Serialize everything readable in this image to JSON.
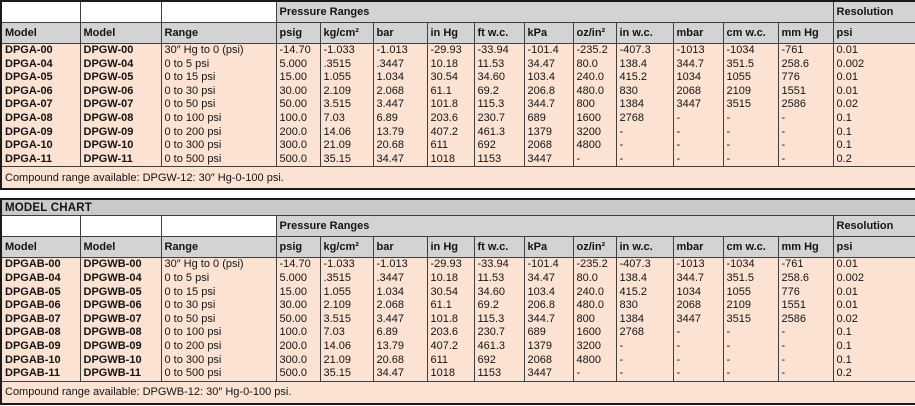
{
  "colors": {
    "header_bg": "#d3d3d3",
    "chart_title_bg": "#c9c9c9",
    "row_bg": "#fbe2d3",
    "inner_border": "#3f3f3f",
    "outer_border": "#1a1a1a",
    "text": "#141414"
  },
  "tables": [
    {
      "group_header": {
        "pressure_ranges": "Pressure Ranges",
        "resolution": "Resolution"
      },
      "columns": [
        "Model",
        "Model",
        "Range",
        "psig",
        "kg/cm²",
        "bar",
        "in Hg",
        "ft w.c.",
        "kPa",
        "oz/in²",
        "in w.c.",
        "mbar",
        "cm w.c.",
        "mm Hg",
        "psi"
      ],
      "rows": [
        [
          "DPGA-00",
          "DPGW-00",
          "30″ Hg to 0 (psi)",
          "-14.70",
          "-1.033",
          "-1.013",
          "-29.93",
          "-33.94",
          "-101.4",
          "-235.2",
          "-407.3",
          "-1013",
          "-1034",
          "-761",
          "0.01"
        ],
        [
          "DPGA-04",
          "DPGW-04",
          "0 to 5 psi",
          "5.000",
          ".3515",
          ".3447",
          "10.18",
          "11.53",
          "34.47",
          "80.0",
          "138.4",
          "344.7",
          "351.5",
          "258.6",
          "0.002"
        ],
        [
          "DPGA-05",
          "DPGW-05",
          "0 to 15 psi",
          "15.00",
          "1.055",
          "1.034",
          "30.54",
          "34.60",
          "103.4",
          "240.0",
          "415.2",
          "1034",
          "1055",
          "776",
          "0.01"
        ],
        [
          "DPGA-06",
          "DPGW-06",
          "0 to 30 psi",
          "30.00",
          "2.109",
          "2.068",
          "61.1",
          "69.2",
          "206.8",
          "480.0",
          "830",
          "2068",
          "2109",
          "1551",
          "0.01"
        ],
        [
          "DPGA-07",
          "DPGW-07",
          "0 to 50 psi",
          "50.00",
          "3.515",
          "3.447",
          "101.8",
          "115.3",
          "344.7",
          "800",
          "1384",
          "3447",
          "3515",
          "2586",
          "0.02"
        ],
        [
          "DPGA-08",
          "DPGW-08",
          "0 to 100 psi",
          "100.0",
          "7.03",
          "6.89",
          "203.6",
          "230.7",
          "689",
          "1600",
          "2768",
          "-",
          "-",
          "-",
          "0.1"
        ],
        [
          "DPGA-09",
          "DPGW-09",
          "0 to 200 psi",
          "200.0",
          "14.06",
          "13.79",
          "407.2",
          "461.3",
          "1379",
          "3200",
          "-",
          "-",
          "-",
          "-",
          "0.1"
        ],
        [
          "DPGA-10",
          "DPGW-10",
          "0 to 300 psi",
          "300.0",
          "21.09",
          "20.68",
          "611",
          "692",
          "2068",
          "4800",
          "-",
          "-",
          "-",
          "-",
          "0.1"
        ],
        [
          "DPGA-11",
          "DPGW-11",
          "0 to 500 psi",
          "500.0",
          "35.15",
          "34.47",
          "1018",
          "1153",
          "3447",
          "-",
          "-",
          "-",
          "-",
          "-",
          "0.2"
        ]
      ],
      "footnote": "Compound range available: DPGW-12: 30″ Hg-0-100 psi."
    },
    {
      "title": "MODEL CHART",
      "group_header": {
        "pressure_ranges": "Pressure Ranges",
        "resolution": "Resolution"
      },
      "columns": [
        "Model",
        "Model",
        "Range",
        "psig",
        "kg/cm²",
        "bar",
        "in Hg",
        "ft w.c.",
        "kPa",
        "oz/in²",
        "in w.c.",
        "mbar",
        "cm w.c.",
        "mm Hg",
        "psi"
      ],
      "rows": [
        [
          "DPGAB-00",
          "DPGWB-00",
          "30″ Hg to 0 (psi)",
          "-14.70",
          "-1.033",
          "-1.013",
          "-29.93",
          "-33.94",
          "-101.4",
          "-235.2",
          "-407.3",
          "-1013",
          "-1034",
          "-761",
          "0.01"
        ],
        [
          "DPGAB-04",
          "DPGWB-04",
          "0 to 5 psi",
          "5.000",
          ".3515",
          ".3447",
          "10.18",
          "11.53",
          "34.47",
          "80.0",
          "138.4",
          "344.7",
          "351.5",
          "258.6",
          "0.002"
        ],
        [
          "DPGAB-05",
          "DPGWB-05",
          "0 to 15 psi",
          "15.00",
          "1.055",
          "1.034",
          "30.54",
          "34.60",
          "103.4",
          "240.0",
          "415.2",
          "1034",
          "1055",
          "776",
          "0.01"
        ],
        [
          "DPGAB-06",
          "DPGWB-06",
          "0 to 30 psi",
          "30.00",
          "2.109",
          "2.068",
          "61.1",
          "69.2",
          "206.8",
          "480.0",
          "830",
          "2068",
          "2109",
          "1551",
          "0.01"
        ],
        [
          "DPGAB-07",
          "DPGWB-07",
          "0 to 50 psi",
          "50.00",
          "3.515",
          "3.447",
          "101.8",
          "115.3",
          "344.7",
          "800",
          "1384",
          "3447",
          "3515",
          "2586",
          "0.02"
        ],
        [
          "DPGAB-08",
          "DPGWB-08",
          "0 to 100 psi",
          "100.0",
          "7.03",
          "6.89",
          "203.6",
          "230.7",
          "689",
          "1600",
          "2768",
          "-",
          "-",
          "-",
          "0.1"
        ],
        [
          "DPGAB-09",
          "DPGWB-09",
          "0 to 200 psi",
          "200.0",
          "14.06",
          "13.79",
          "407.2",
          "461.3",
          "1379",
          "3200",
          "-",
          "-",
          "-",
          "-",
          "0.1"
        ],
        [
          "DPGAB-10",
          "DPGWB-10",
          "0 to 300 psi",
          "300.0",
          "21.09",
          "20.68",
          "611",
          "692",
          "2068",
          "4800",
          "-",
          "-",
          "-",
          "-",
          "0.1"
        ],
        [
          "DPGAB-11",
          "DPGWB-11",
          "0 to 500 psi",
          "500.0",
          "35.15",
          "34.47",
          "1018",
          "1153",
          "3447",
          "-",
          "-",
          "-",
          "-",
          "-",
          "0.2"
        ]
      ],
      "footnote": "Compound range available: DPGWB-12: 30″ Hg-0-100 psi."
    }
  ]
}
